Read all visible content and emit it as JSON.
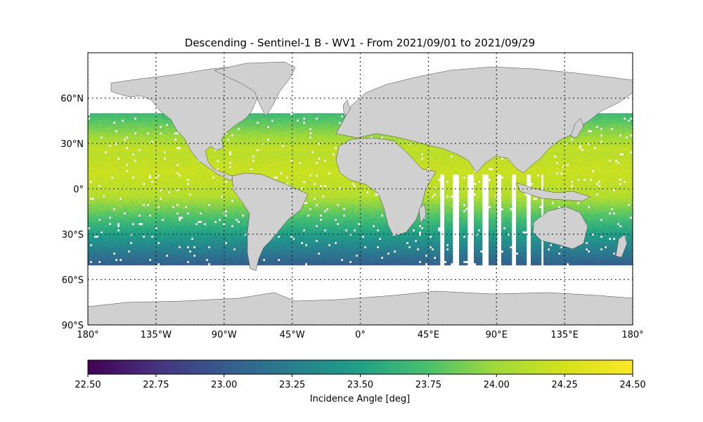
{
  "title": "Descending - Sentinel-1 B - WV1 - From 2021/09/01 to 2021/09/29",
  "map": {
    "lon_range": [
      -180,
      180
    ],
    "lat_range": [
      -90,
      90
    ],
    "lon_ticks": [
      {
        "value": -180,
        "label": "180°"
      },
      {
        "value": -135,
        "label": "135°W"
      },
      {
        "value": -90,
        "label": "90°W"
      },
      {
        "value": -45,
        "label": "45°W"
      },
      {
        "value": 0,
        "label": "0°"
      },
      {
        "value": 45,
        "label": "45°E"
      },
      {
        "value": 90,
        "label": "90°E"
      },
      {
        "value": 135,
        "label": "135°E"
      },
      {
        "value": 180,
        "label": "180°"
      }
    ],
    "lat_ticks": [
      {
        "value": 60,
        "label": "60°N"
      },
      {
        "value": 30,
        "label": "30°N"
      },
      {
        "value": 0,
        "label": "0°"
      },
      {
        "value": -30,
        "label": "30°S"
      },
      {
        "value": -60,
        "label": "60°S"
      },
      {
        "value": -90,
        "label": "90°S"
      }
    ],
    "grid": "dotted",
    "land_color": "#d0d0d0",
    "ocean_color": "#ffffff",
    "coverage_lat_range": [
      -50,
      50
    ]
  },
  "colorbar": {
    "label": "Incidence Angle [deg]",
    "colormap": "viridis",
    "vmin": 22.5,
    "vmax": 24.5,
    "ticks": [
      {
        "value": 22.5,
        "label": "22.50"
      },
      {
        "value": 22.75,
        "label": "22.75"
      },
      {
        "value": 23.0,
        "label": "23.00"
      },
      {
        "value": 23.25,
        "label": "23.25"
      },
      {
        "value": 23.5,
        "label": "23.50"
      },
      {
        "value": 23.75,
        "label": "23.75"
      },
      {
        "value": 24.0,
        "label": "24.00"
      },
      {
        "value": 24.25,
        "label": "24.25"
      },
      {
        "value": 24.5,
        "label": "24.50"
      }
    ]
  }
}
